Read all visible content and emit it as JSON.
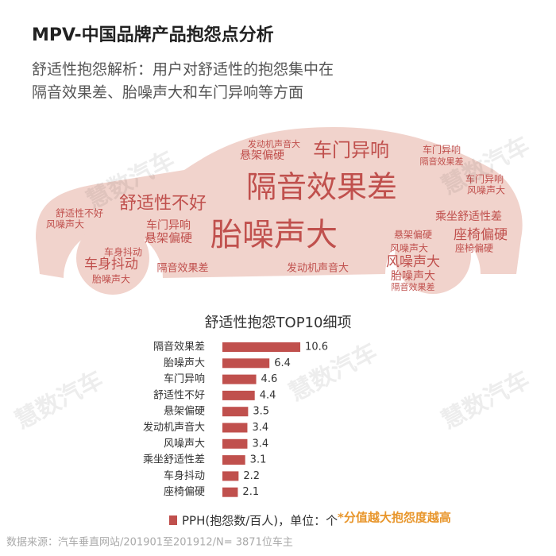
{
  "header": {
    "title": "MPV-中国品牌产品抱怨点分析",
    "subtitle": [
      "舒适性抱怨解析：用户对舒适性的抱怨集中在",
      "隔音效果差、胎噪声大和车门异响等方面"
    ]
  },
  "word_cloud": {
    "words": [
      "隔音效果差",
      "胎噪声大",
      "车门异响",
      "舒适性不好",
      "车身抖动",
      "悬架偏硬",
      "车门异响",
      "座椅偏硬",
      "乘坐舒适性差",
      "风噪声大",
      "胎噪声大",
      "车身抖动",
      "舒适性不好",
      "风噪声大",
      "胎噪声大",
      "隔音效果差",
      "发动机声音大",
      "悬架偏硬",
      "发动机声音大",
      "车门异响",
      "隔音效果差",
      "车门异响",
      "风噪声大",
      "风噪声大",
      "悬架偏硬",
      "隔音效果差",
      "座椅偏硬"
    ]
  },
  "watermark": "慧数汽车",
  "chart_data": {
    "type": "bar",
    "title": "舒适性抱怨TOP10细项",
    "categories": [
      "隔音效果差",
      "胎噪声大",
      "车门异响",
      "舒适性不好",
      "悬架偏硬",
      "发动机声音大",
      "风噪声大",
      "乘坐舒适性差",
      "车身抖动",
      "座椅偏硬"
    ],
    "series": [
      {
        "name": "PPH(抱怨数/百人)，单位：个",
        "color": "#c0504d",
        "values": [
          10.6,
          6.4,
          4.6,
          4.4,
          3.5,
          3.4,
          3.4,
          3.1,
          2.2,
          2.1
        ]
      }
    ],
    "note": "*分值越大抱怨度越高"
  },
  "source": "数据来源：汽车垂直网站/201901至201912/N= 3871位车主"
}
